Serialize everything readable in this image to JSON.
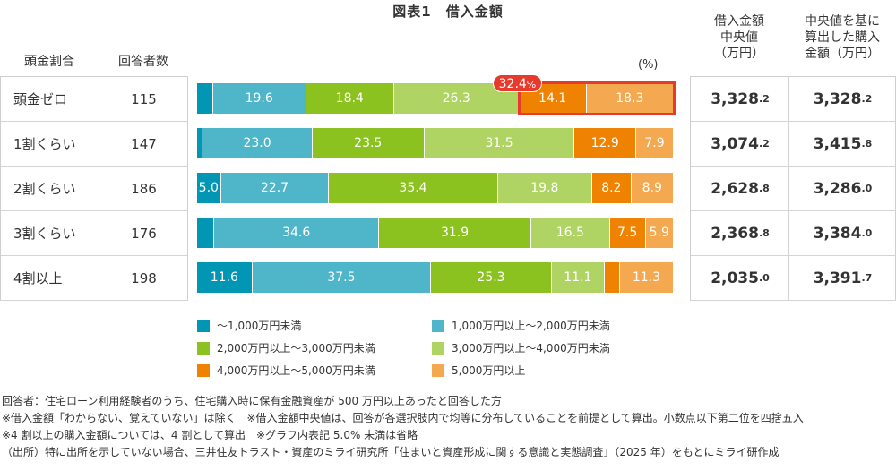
{
  "chart_data": {
    "type": "bar",
    "stacked": "horizontal-100%",
    "title": "図表1　借入金額",
    "unit_label": "(%)",
    "categories": [
      "頭金ゼロ",
      "1割くらい",
      "2割くらい",
      "3割くらい",
      "4割以上"
    ],
    "respondents": [
      "115",
      "147",
      "186",
      "176",
      "198"
    ],
    "series": [
      {
        "name": "～1,000万円未満",
        "color": "#0096b4",
        "values": [
          3.3,
          1.2,
          5.0,
          3.6,
          11.6
        ]
      },
      {
        "name": "1,000万円以上～2,000万円未満",
        "color": "#4fb5c8",
        "values": [
          19.6,
          23.0,
          22.7,
          34.6,
          37.5
        ]
      },
      {
        "name": "2,000万円以上～3,000万円未満",
        "color": "#8cc21f",
        "values": [
          18.4,
          23.5,
          35.4,
          31.9,
          25.3
        ]
      },
      {
        "name": "3,000万円以上～4,000万円未満",
        "color": "#b0d463",
        "values": [
          26.3,
          31.5,
          19.8,
          16.5,
          11.1
        ]
      },
      {
        "name": "4,000万円以上～5,000万円未満",
        "color": "#ef8200",
        "values": [
          14.1,
          12.9,
          8.2,
          7.5,
          3.2
        ]
      },
      {
        "name": "5,000万円以上",
        "color": "#f4a84f",
        "values": [
          18.3,
          7.9,
          8.9,
          5.9,
          11.3
        ]
      }
    ],
    "highlight": {
      "row": 0,
      "series": [
        4,
        5
      ],
      "label": "32.4",
      "label_unit": "%",
      "color": "#e8392d"
    },
    "xlim": [
      0,
      100
    ]
  },
  "headers": {
    "down_payment": "頭金割合",
    "respondents": "回答者数",
    "median": [
      "借入金額",
      "中央値",
      "（万円）"
    ],
    "purchase": [
      "中央値を基に",
      "算出した購入",
      "金額（万円）"
    ]
  },
  "median": [
    {
      "int": "3,328",
      "dec": ".2"
    },
    {
      "int": "3,074",
      "dec": ".2"
    },
    {
      "int": "2,628",
      "dec": ".8"
    },
    {
      "int": "2,368",
      "dec": ".8"
    },
    {
      "int": "2,035",
      "dec": ".0"
    }
  ],
  "purchase": [
    {
      "int": "3,328",
      "dec": ".2"
    },
    {
      "int": "3,415",
      "dec": ".8"
    },
    {
      "int": "3,286",
      "dec": ".0"
    },
    {
      "int": "3,384",
      "dec": ".0"
    },
    {
      "int": "3,391",
      "dec": ".7"
    }
  ],
  "notes": [
    "回答者：住宅ローン利用経験者のうち、住宅購入時に保有金融資産が 500 万円以上あったと回答した方",
    "※借入金額「わからない、覚えていない」は除く　※借入金額中央値は、回答が各選択肢内で均等に分布していることを前提として算出。小数点以下第二位を四捨五入",
    "※4 割以上の購入金額については、4 割として算出　※グラフ内表記 5.0% 未満は省略",
    "（出所）特に出所を示していない場合、三井住友トラスト・資産のミライ研究所「住まいと資産形成に関する意識と実態調査」（2025 年）をもとにミライ研作成"
  ]
}
